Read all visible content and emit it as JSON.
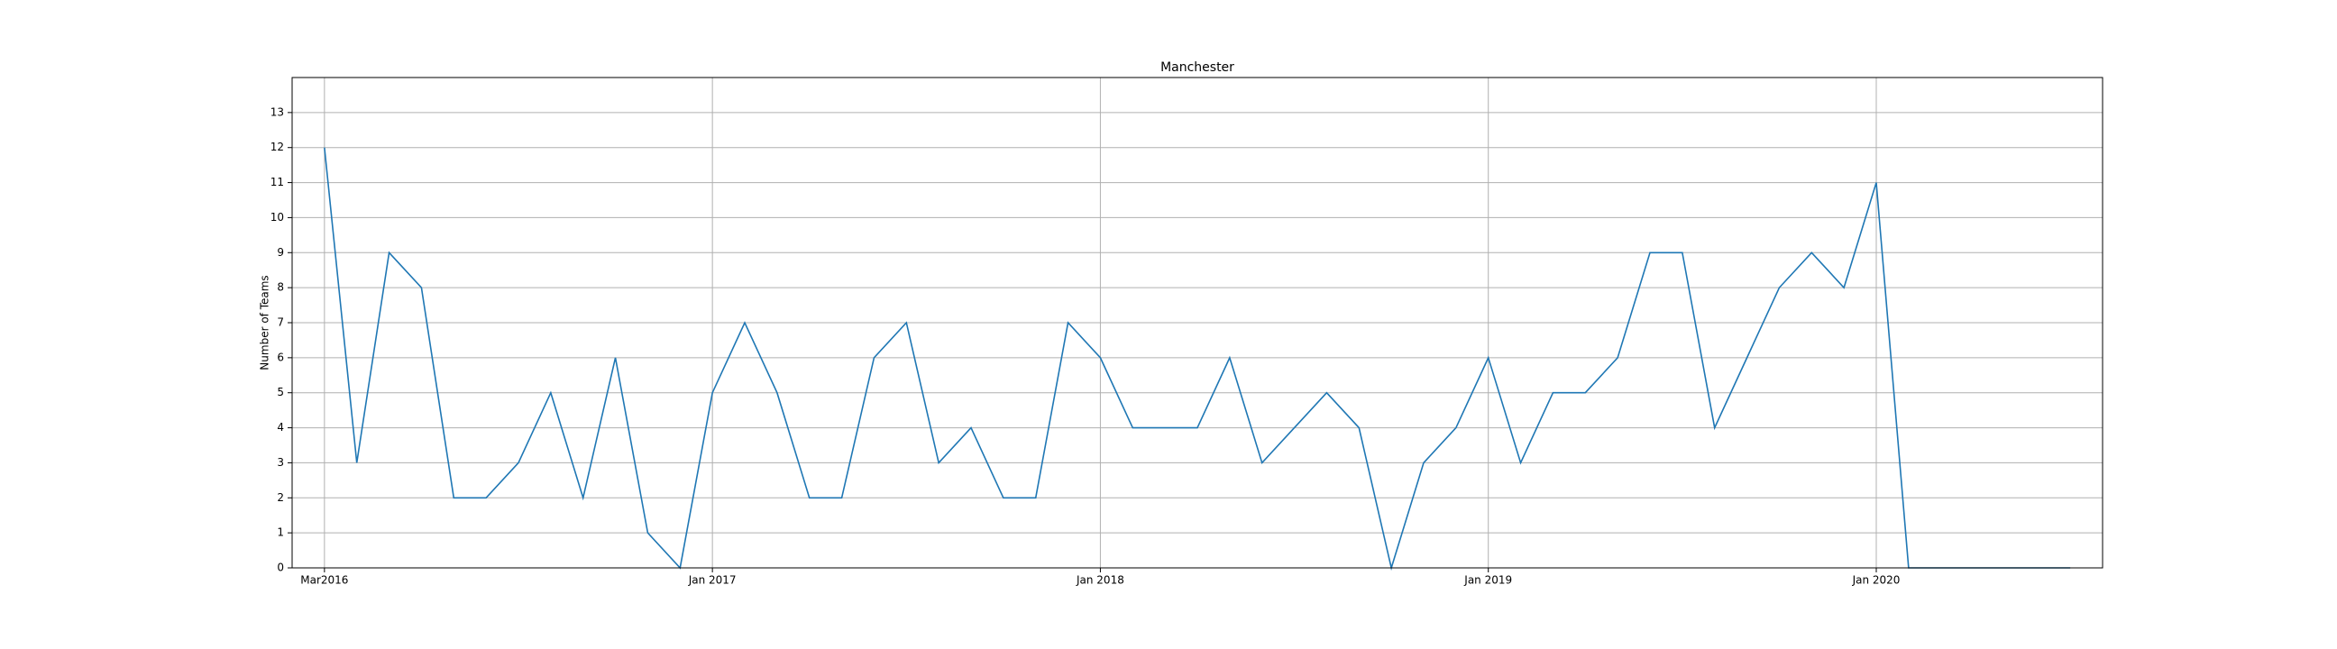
{
  "chart_data": {
    "type": "line",
    "title": "Manchester",
    "y_label": "Number of Teams",
    "categories": [
      "Mar2016",
      null,
      null,
      null,
      null,
      null,
      null,
      null,
      null,
      null,
      null,
      null,
      "Jan 2017",
      null,
      null,
      null,
      null,
      null,
      null,
      null,
      null,
      null,
      null,
      null,
      "Jan 2018",
      null,
      null,
      null,
      null,
      null,
      null,
      null,
      null,
      null,
      null,
      null,
      "Jan 2019",
      null,
      null,
      null,
      null,
      null,
      null,
      null,
      null,
      null,
      null,
      null,
      "Jan 2020",
      null,
      null,
      null,
      null,
      null,
      null
    ],
    "series": [
      {
        "name": "Manchester",
        "color": "#1f77b4",
        "values": [
          12,
          3,
          9,
          8,
          2,
          2,
          3,
          5,
          2,
          6,
          1,
          0,
          5,
          7,
          5,
          2,
          2,
          6,
          7,
          3,
          4,
          2,
          2,
          7,
          6,
          4,
          4,
          4,
          6,
          3,
          4,
          5,
          4,
          0,
          3,
          4,
          6,
          3,
          5,
          5,
          6,
          9,
          9,
          4,
          6,
          8,
          9,
          8,
          11,
          0,
          0,
          0,
          0,
          0,
          0
        ]
      }
    ],
    "ylim": [
      0,
      14
    ],
    "yticks": [
      0,
      1,
      2,
      3,
      4,
      5,
      6,
      7,
      8,
      9,
      10,
      11,
      12,
      13
    ],
    "grid": true
  }
}
